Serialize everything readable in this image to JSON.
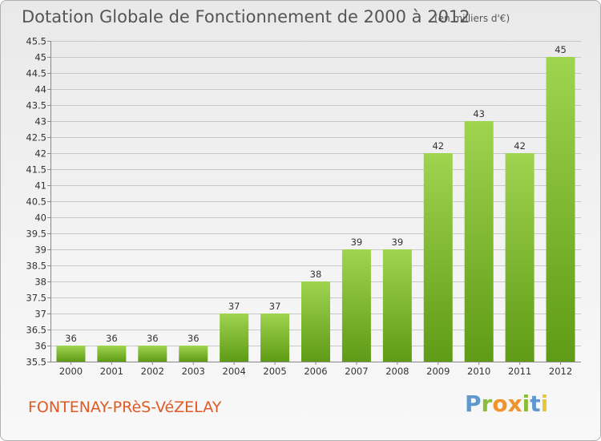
{
  "title": "Dotation Globale de Fonctionnement de 2000 à 2012",
  "subtitle": "(en milliers d'€)",
  "place": "FONTENAY-PRèS-VéZELAY",
  "logo": {
    "p": "P",
    "r": "r",
    "o": "o",
    "x": "x",
    "i1": "i",
    "t": "t",
    "i2": "i"
  },
  "colors": {
    "bar_top": "#9fd44f",
    "bar_bottom": "#5f9b16",
    "grid": "#c8c8c8",
    "accent": "#e05a26"
  },
  "chart_data": {
    "type": "bar",
    "title": "Dotation Globale de Fonctionnement de 2000 à 2012",
    "subtitle": "(en milliers d'€)",
    "categories": [
      "2000",
      "2001",
      "2002",
      "2003",
      "2004",
      "2005",
      "2006",
      "2007",
      "2008",
      "2009",
      "2010",
      "2011",
      "2012"
    ],
    "values": [
      36,
      36,
      36,
      36,
      37,
      37,
      38,
      39,
      39,
      42,
      43,
      42,
      45
    ],
    "ylim": [
      35.5,
      45.5
    ],
    "yticks": [
      "35.5",
      "36",
      "36.5",
      "37",
      "37.5",
      "38",
      "38.5",
      "39",
      "39.5",
      "40",
      "40.5",
      "41",
      "41.5",
      "42",
      "42.5",
      "43",
      "43.5",
      "44",
      "44.5",
      "45",
      "45.5"
    ],
    "grid": true
  }
}
